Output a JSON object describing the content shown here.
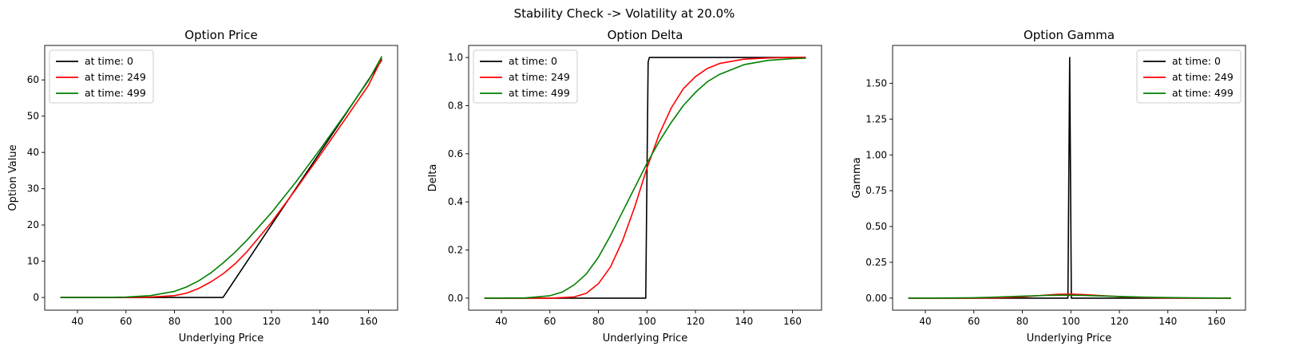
{
  "suptitle": "Stability Check -> Volatility at 20.0%",
  "chart_data": [
    {
      "type": "line",
      "title": "Option Price",
      "xlabel": "Underlying Price",
      "ylabel": "Option Value",
      "xlim": [
        26.5,
        172
      ],
      "ylim": [
        -3.5,
        69.5
      ],
      "xticks": [
        40,
        60,
        80,
        100,
        120,
        140,
        160
      ],
      "yticks": [
        0,
        10,
        20,
        30,
        40,
        50,
        60
      ],
      "ytick_labels": [
        "0",
        "10",
        "20",
        "30",
        "40",
        "50",
        "60"
      ],
      "legend": "top-left",
      "grid": false,
      "series": [
        {
          "name": "at time: 0",
          "color": "#000000",
          "x": [
            33,
            60,
            80,
            95,
            100,
            110,
            120,
            130,
            140,
            150,
            160,
            165.5
          ],
          "y": [
            0,
            0,
            0,
            0,
            0,
            10,
            20,
            30,
            40,
            50,
            60,
            65.5
          ]
        },
        {
          "name": "at time: 249",
          "color": "#ff0000",
          "x": [
            33,
            60,
            70,
            80,
            85,
            90,
            95,
            100,
            105,
            110,
            120,
            130,
            140,
            150,
            160,
            165.5
          ],
          "y": [
            0,
            0,
            0.1,
            0.5,
            1.2,
            2.5,
            4.3,
            6.5,
            9.3,
            12.7,
            20.7,
            29.8,
            39.2,
            48.8,
            58.5,
            65.9
          ]
        },
        {
          "name": "at time: 499",
          "color": "#008000",
          "x": [
            33,
            50,
            60,
            70,
            80,
            85,
            90,
            95,
            100,
            105,
            110,
            120,
            130,
            140,
            150,
            160,
            165.5
          ],
          "y": [
            0,
            0,
            0.1,
            0.5,
            1.7,
            2.9,
            4.6,
            6.8,
            9.5,
            12.5,
            15.9,
            23.4,
            31.8,
            40.8,
            50.2,
            59.8,
            66.5
          ]
        }
      ]
    },
    {
      "type": "line",
      "title": "Option Delta",
      "xlabel": "Underlying Price",
      "ylabel": "Delta",
      "xlim": [
        26.5,
        172
      ],
      "ylim": [
        -0.05,
        1.05
      ],
      "xticks": [
        40,
        60,
        80,
        100,
        120,
        140,
        160
      ],
      "yticks": [
        0,
        0.2,
        0.4,
        0.6,
        0.8,
        1.0
      ],
      "ytick_labels": [
        "0.0",
        "0.2",
        "0.4",
        "0.6",
        "0.8",
        "1.0"
      ],
      "legend": "top-left",
      "grid": false,
      "series": [
        {
          "name": "at time: 0",
          "color": "#000000",
          "x": [
            33,
            60,
            80,
            99.5,
            100,
            100.5,
            101,
            120,
            140,
            165.5
          ],
          "y": [
            0,
            0,
            0,
            0,
            0.5,
            0.98,
            1.0,
            1.0,
            1.0,
            1.0
          ]
        },
        {
          "name": "at time: 249",
          "color": "#ff0000",
          "x": [
            33,
            60,
            70,
            75,
            80,
            85,
            90,
            95,
            100,
            105,
            110,
            115,
            120,
            125,
            130,
            140,
            150,
            160,
            165.5
          ],
          "y": [
            0,
            0,
            0.005,
            0.02,
            0.06,
            0.13,
            0.24,
            0.38,
            0.54,
            0.68,
            0.79,
            0.87,
            0.92,
            0.955,
            0.975,
            0.993,
            0.998,
            1.0,
            1.0
          ]
        },
        {
          "name": "at time: 499",
          "color": "#008000",
          "x": [
            33,
            50,
            60,
            65,
            70,
            75,
            80,
            85,
            90,
            95,
            100,
            105,
            110,
            115,
            120,
            125,
            130,
            140,
            150,
            160,
            165.5
          ],
          "y": [
            0,
            0.001,
            0.01,
            0.025,
            0.055,
            0.1,
            0.17,
            0.26,
            0.36,
            0.46,
            0.56,
            0.65,
            0.73,
            0.8,
            0.855,
            0.9,
            0.93,
            0.97,
            0.988,
            0.995,
            0.997
          ]
        }
      ]
    },
    {
      "type": "line",
      "title": "Option Gamma",
      "xlabel": "Underlying Price",
      "ylabel": "Gamma",
      "xlim": [
        26.5,
        172
      ],
      "ylim": [
        -0.084,
        1.764
      ],
      "xticks": [
        40,
        60,
        80,
        100,
        120,
        140,
        160
      ],
      "yticks": [
        0,
        0.25,
        0.5,
        0.75,
        1.0,
        1.25,
        1.5
      ],
      "ytick_labels": [
        "0.00",
        "0.25",
        "0.50",
        "0.75",
        "1.00",
        "1.25",
        "1.50"
      ],
      "legend": "top-right",
      "grid": false,
      "series": [
        {
          "name": "at time: 0",
          "color": "#000000",
          "x": [
            33,
            98.8,
            99.5,
            100.2,
            166
          ],
          "y": [
            0,
            0,
            1.68,
            0,
            0
          ]
        },
        {
          "name": "at time: 249",
          "color": "#ff0000",
          "x": [
            33,
            60,
            70,
            80,
            90,
            95,
            100,
            105,
            110,
            120,
            130,
            140,
            166
          ],
          "y": [
            0,
            0,
            0.002,
            0.009,
            0.022,
            0.027,
            0.028,
            0.025,
            0.02,
            0.01,
            0.004,
            0.001,
            0
          ]
        },
        {
          "name": "at time: 499",
          "color": "#008000",
          "x": [
            33,
            50,
            60,
            70,
            80,
            90,
            95,
            100,
            105,
            110,
            120,
            130,
            140,
            150,
            166
          ],
          "y": [
            0,
            0.001,
            0.003,
            0.008,
            0.014,
            0.019,
            0.02,
            0.02,
            0.019,
            0.017,
            0.012,
            0.007,
            0.004,
            0.002,
            0
          ]
        }
      ]
    }
  ]
}
